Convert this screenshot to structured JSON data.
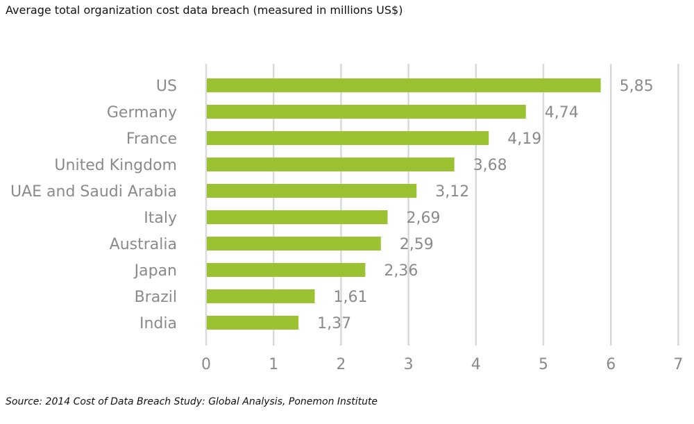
{
  "chart_data": {
    "type": "bar",
    "orientation": "horizontal",
    "title": "Average total organization cost data breach (measured in millions US$)",
    "source": "Source: 2014 Cost of Data Breach Study: Global Analysis, Ponemon Institute",
    "categories": [
      "US",
      "Germany",
      "France",
      "United Kingdom",
      "UAE and Saudi Arabia",
      "Italy",
      "Australia",
      "Japan",
      "Brazil",
      "India"
    ],
    "values": [
      5.85,
      4.74,
      4.19,
      3.68,
      3.12,
      2.69,
      2.59,
      2.36,
      1.61,
      1.37
    ],
    "value_labels": [
      "5,85",
      "4,74",
      "4,19",
      "3,68",
      "3,12",
      "2,69",
      "2,59",
      "2,36",
      "1,61",
      "1,37"
    ],
    "xlim": [
      0,
      7
    ],
    "xticks": [
      "0",
      "1",
      "2",
      "3",
      "4",
      "5",
      "6",
      "7"
    ],
    "grid": true,
    "bar_color": "#9bc230"
  }
}
